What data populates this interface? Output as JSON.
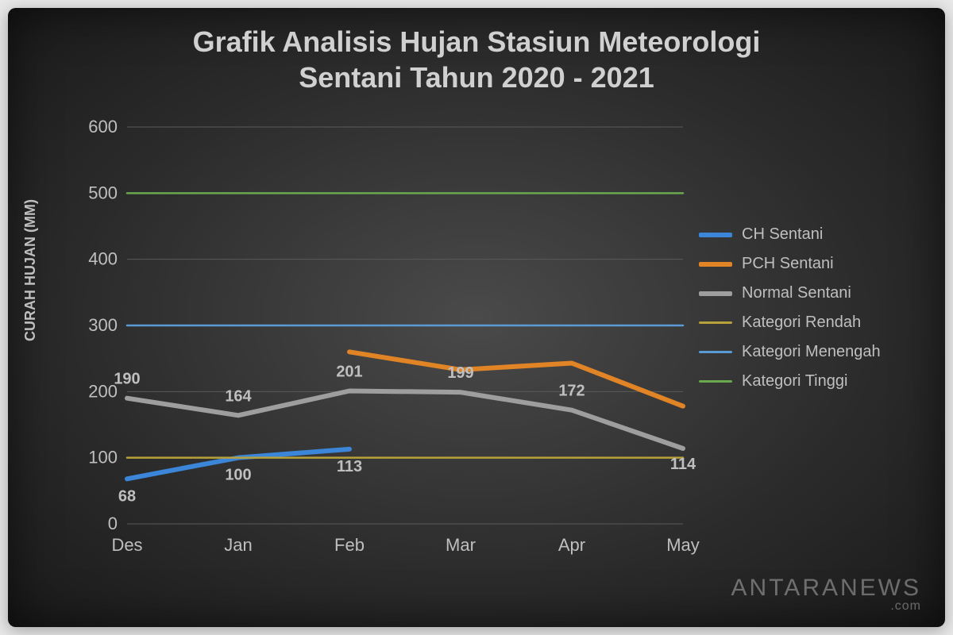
{
  "title_line1": "Grafik Analisis Hujan Stasiun Meteorologi",
  "title_line2": "Sentani Tahun 2020 - 2021",
  "title_fontsize": 36,
  "ylabel": "CURAH HUJAN (MM)",
  "ylabel_fontsize": 18,
  "watermark_main": "ANTARANEWS",
  "watermark_sub": ".com",
  "background_gradient_inner": "#4a4a4a",
  "background_gradient_outer": "#1a1a1a",
  "text_color": "#d0d0d0",
  "axis_text_color": "#bfbfbf",
  "grid_color": "#5a5a5a",
  "chart": {
    "type": "line",
    "categories": [
      "Des",
      "Jan",
      "Feb",
      "Mar",
      "Apr",
      "May"
    ],
    "ylim": [
      0,
      600
    ],
    "ytick_step": 100,
    "axis_fontsize": 22,
    "label_fontsize": 20,
    "line_width": 6,
    "thin_line_width": 2.5,
    "series": [
      {
        "name": "CH Sentani",
        "color": "#3b86d8",
        "width": 6,
        "values": [
          68,
          100,
          113,
          null,
          null,
          null
        ],
        "data_labels": [
          68,
          100,
          113,
          null,
          null,
          null
        ],
        "label_dy": [
          28,
          28,
          28,
          0,
          0,
          0
        ]
      },
      {
        "name": "PCH Sentani",
        "color": "#e08426",
        "width": 6,
        "values": [
          null,
          null,
          260,
          233,
          243,
          178
        ],
        "data_labels": [
          null,
          null,
          null,
          null,
          null,
          null
        ]
      },
      {
        "name": "Normal Sentani",
        "color": "#9e9e9e",
        "width": 6,
        "values": [
          190,
          164,
          201,
          199,
          172,
          114
        ],
        "data_labels": [
          190,
          164,
          201,
          199,
          172,
          114
        ],
        "label_dy": [
          -18,
          -18,
          -18,
          -18,
          -18,
          26
        ]
      },
      {
        "name": "Kategori Rendah",
        "color": "#b8a03a",
        "width": 2.5,
        "values": [
          100,
          100,
          100,
          100,
          100,
          100
        ],
        "data_labels": [
          null,
          null,
          null,
          null,
          null,
          null
        ]
      },
      {
        "name": "Kategori Menengah",
        "color": "#5b9bd5",
        "width": 2.5,
        "values": [
          300,
          300,
          300,
          300,
          300,
          300
        ],
        "data_labels": [
          null,
          null,
          null,
          null,
          null,
          null
        ]
      },
      {
        "name": "Kategori Tinggi",
        "color": "#6aa84f",
        "width": 2.5,
        "values": [
          500,
          500,
          500,
          500,
          500,
          500
        ],
        "data_labels": [
          null,
          null,
          null,
          null,
          null,
          null
        ]
      }
    ]
  },
  "legend_fontsize": 20
}
